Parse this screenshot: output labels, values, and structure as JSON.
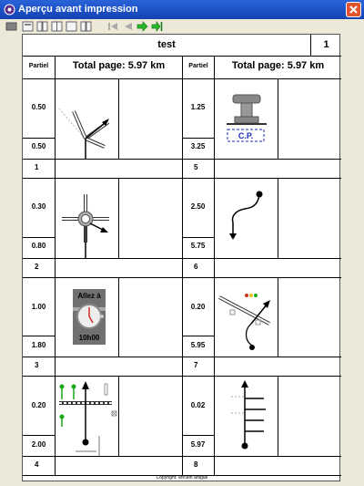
{
  "window": {
    "title": "Aperçu avant impression"
  },
  "header": {
    "name": "test",
    "page_number": "1"
  },
  "columns": {
    "partiel_label": "Partiel",
    "total_label": "Total page: 5.97 km"
  },
  "steps": [
    {
      "num": "1",
      "partiel": "0.50",
      "total": "0.50"
    },
    {
      "num": "2",
      "partiel": "0.30",
      "total": "0.80"
    },
    {
      "num": "3",
      "partiel": "1.00",
      "total": "1.80"
    },
    {
      "num": "4",
      "partiel": "0.20",
      "total": "2.00"
    },
    {
      "num": "5",
      "partiel": "1.25",
      "total": "3.25",
      "sign": "C.P."
    },
    {
      "num": "6",
      "partiel": "2.50",
      "total": "5.75"
    },
    {
      "num": "7",
      "partiel": "0.20",
      "total": "5.95"
    },
    {
      "num": "8",
      "partiel": "0.02",
      "total": "5.97"
    }
  ],
  "clock": {
    "top": "Allez à",
    "bottom": "10h00"
  },
  "footer": "Copyright: vincent artigue",
  "colors": {
    "titlebar": "#1b4fc4",
    "green_icon": "#18a818",
    "blue_text": "#1a2ab8"
  }
}
